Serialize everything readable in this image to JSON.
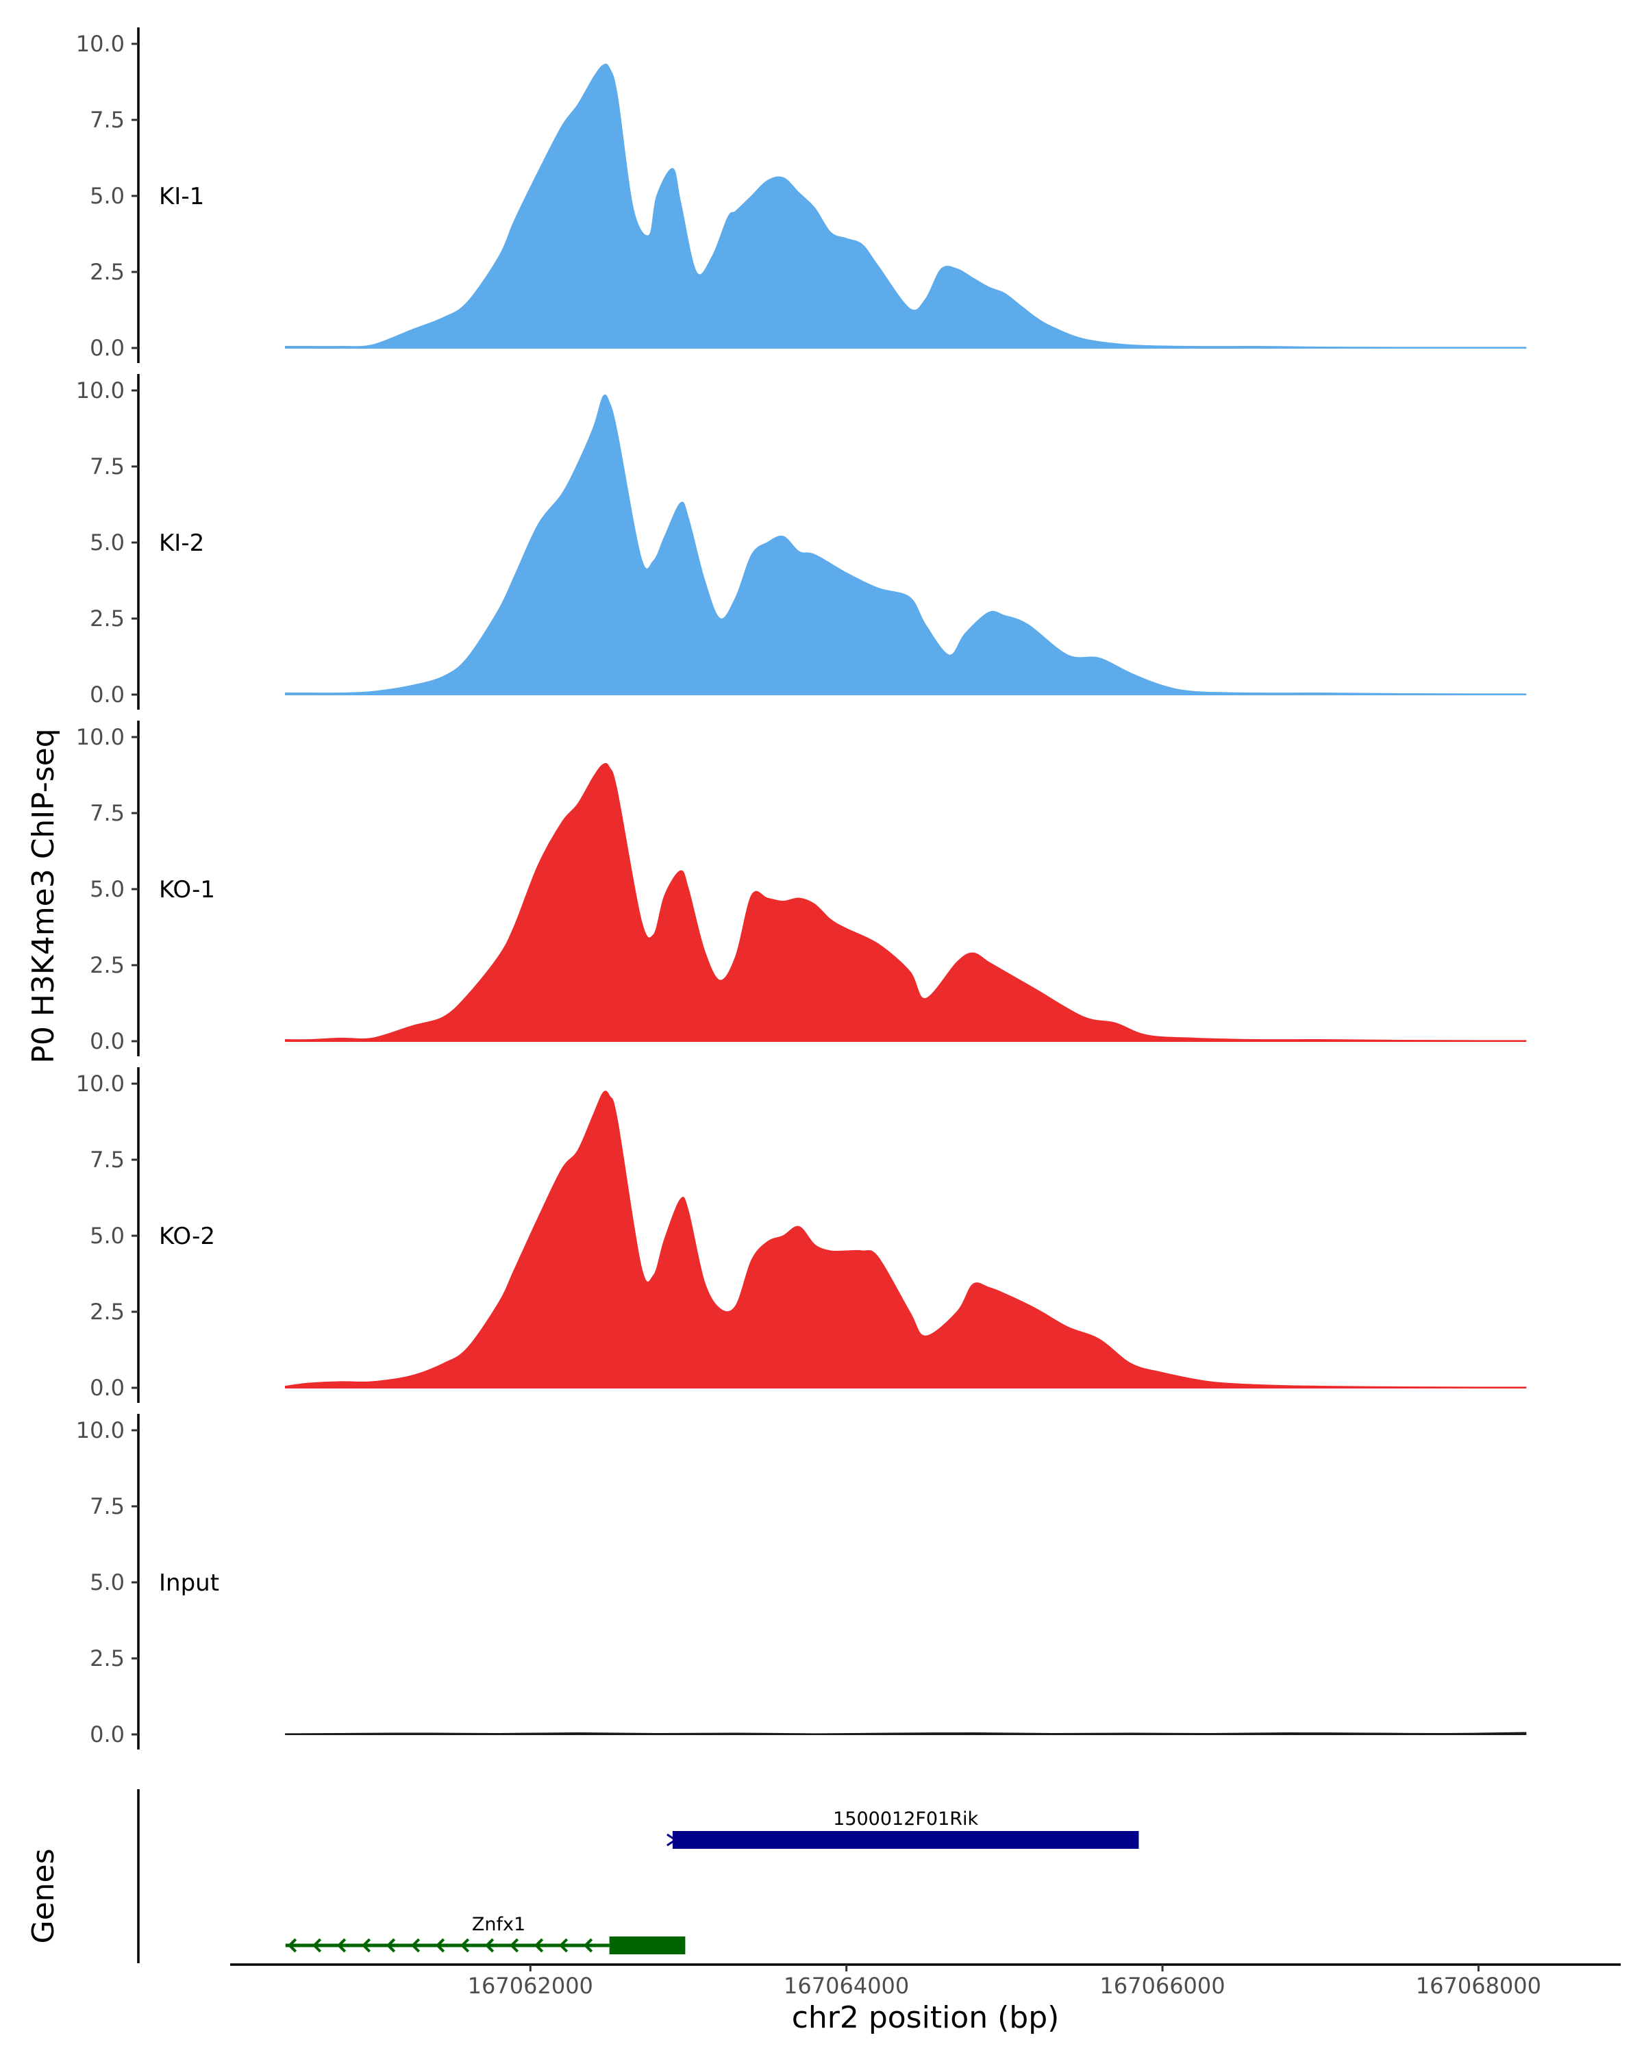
{
  "chart_data": {
    "type": "area",
    "chromosome": "chr2",
    "ylabel": "P0 H3K4me3 ChIP-seq",
    "xlabel": "chr2 position (bp)",
    "xlim": [
      167060100,
      167068900
    ],
    "ylim": [
      0,
      10
    ],
    "y_ticks": [
      "0.0",
      "2.5",
      "5.0",
      "7.5",
      "10.0"
    ],
    "x_ticks": [
      {
        "value": 167062000,
        "label": "167062000"
      },
      {
        "value": 167064000,
        "label": "167064000"
      },
      {
        "value": 167066000,
        "label": "167066000"
      },
      {
        "value": 167068000,
        "label": "167068000"
      }
    ],
    "genes_label": "Genes",
    "tracks": [
      {
        "name": "KI-1",
        "color": "#5dabeb",
        "x": [
          167060450,
          167060600,
          167060800,
          167061000,
          167061250,
          167061450,
          167061600,
          167061800,
          167061900,
          167062050,
          167062200,
          167062300,
          167062400,
          167062460,
          167062500,
          167062550,
          167062650,
          167062750,
          167062800,
          167062900,
          167062950,
          167063050,
          167063150,
          167063250,
          167063300,
          167063400,
          167063500,
          167063600,
          167063700,
          167063800,
          167063900,
          167064000,
          167064100,
          167064200,
          167064400,
          167064500,
          167064600,
          167064700,
          167064800,
          167064900,
          167065000,
          167065100,
          167065200,
          167065300,
          167065500,
          167065800,
          167066200,
          167066600,
          167067000,
          167067500,
          167068000,
          167068300
        ],
        "values": [
          0.05,
          0.05,
          0.05,
          0.1,
          0.6,
          1.0,
          1.5,
          3.0,
          4.2,
          5.8,
          7.3,
          8.0,
          8.9,
          9.3,
          9.2,
          8.3,
          4.6,
          3.7,
          5.0,
          5.9,
          4.8,
          2.5,
          3.0,
          4.3,
          4.5,
          5.0,
          5.5,
          5.6,
          5.1,
          4.6,
          3.8,
          3.6,
          3.4,
          2.7,
          1.3,
          1.6,
          2.6,
          2.6,
          2.3,
          2.0,
          1.8,
          1.4,
          1.0,
          0.7,
          0.3,
          0.1,
          0.05,
          0.05,
          0.03,
          0.02,
          0.02,
          0.02
        ]
      },
      {
        "name": "KI-2",
        "color": "#5dabeb",
        "x": [
          167060450,
          167060600,
          167060800,
          167061000,
          167061250,
          167061450,
          167061600,
          167061800,
          167061900,
          167062050,
          167062200,
          167062300,
          167062400,
          167062460,
          167062500,
          167062550,
          167062700,
          167062780,
          167062850,
          167062950,
          167063000,
          167063100,
          167063200,
          167063300,
          167063400,
          167063500,
          167063600,
          167063700,
          167063800,
          167064000,
          167064200,
          167064400,
          167064500,
          167064650,
          167064750,
          167064900,
          167065000,
          167065150,
          167065400,
          167065600,
          167065800,
          167066000,
          167066200,
          167066600,
          167067000,
          167067500,
          167068000,
          167068300
        ],
        "values": [
          0.05,
          0.05,
          0.05,
          0.1,
          0.3,
          0.6,
          1.2,
          2.8,
          3.9,
          5.6,
          6.6,
          7.6,
          8.8,
          9.8,
          9.6,
          8.6,
          4.5,
          4.4,
          5.2,
          6.3,
          5.8,
          3.8,
          2.5,
          3.2,
          4.6,
          5.0,
          5.2,
          4.7,
          4.6,
          4.0,
          3.5,
          3.2,
          2.3,
          1.3,
          2.0,
          2.7,
          2.6,
          2.3,
          1.3,
          1.2,
          0.7,
          0.3,
          0.1,
          0.05,
          0.05,
          0.03,
          0.02,
          0.02
        ]
      },
      {
        "name": "KO-1",
        "color": "#ec2c2c",
        "x": [
          167060450,
          167060600,
          167060800,
          167061000,
          167061250,
          167061450,
          167061600,
          167061800,
          167061900,
          167062050,
          167062200,
          167062300,
          167062400,
          167062460,
          167062500,
          167062550,
          167062700,
          167062780,
          167062850,
          167062950,
          167063000,
          167063100,
          167063200,
          167063300,
          167063400,
          167063500,
          167063600,
          167063700,
          167063800,
          167063900,
          167064000,
          167064200,
          167064400,
          167064500,
          167064700,
          167064800,
          167064900,
          167065000,
          167065200,
          167065500,
          167065700,
          167065900,
          167066200,
          167066600,
          167067000,
          167067500,
          167068000,
          167068300
        ],
        "values": [
          0.05,
          0.05,
          0.1,
          0.1,
          0.5,
          0.8,
          1.5,
          2.8,
          3.8,
          5.8,
          7.2,
          7.8,
          8.7,
          9.1,
          9.0,
          8.2,
          4.0,
          3.5,
          4.8,
          5.6,
          5.0,
          3.0,
          2.0,
          2.8,
          4.8,
          4.7,
          4.6,
          4.7,
          4.5,
          4.0,
          3.7,
          3.2,
          2.3,
          1.4,
          2.6,
          2.9,
          2.6,
          2.3,
          1.7,
          0.8,
          0.6,
          0.2,
          0.1,
          0.05,
          0.05,
          0.03,
          0.02,
          0.02
        ]
      },
      {
        "name": "KO-2",
        "color": "#ec2c2c",
        "x": [
          167060450,
          167060600,
          167060800,
          167061000,
          167061250,
          167061450,
          167061600,
          167061800,
          167061900,
          167062050,
          167062200,
          167062300,
          167062400,
          167062460,
          167062500,
          167062550,
          167062700,
          167062780,
          167062850,
          167062950,
          167063000,
          167063100,
          167063200,
          167063300,
          167063400,
          167063500,
          167063600,
          167063700,
          167063800,
          167063900,
          167064000,
          167064100,
          167064200,
          167064400,
          167064500,
          167064700,
          167064800,
          167064900,
          167065000,
          167065200,
          167065400,
          167065600,
          167065800,
          167066000,
          167066300,
          167066600,
          167067000,
          167067500,
          167068000,
          167068300
        ],
        "values": [
          0.05,
          0.15,
          0.2,
          0.2,
          0.4,
          0.8,
          1.3,
          2.8,
          3.9,
          5.6,
          7.2,
          7.8,
          9.0,
          9.7,
          9.6,
          8.8,
          4.0,
          3.7,
          4.9,
          6.2,
          5.8,
          3.5,
          2.6,
          2.7,
          4.2,
          4.8,
          5.0,
          5.3,
          4.7,
          4.5,
          4.5,
          4.5,
          4.3,
          2.5,
          1.7,
          2.5,
          3.4,
          3.3,
          3.1,
          2.6,
          2.0,
          1.6,
          0.8,
          0.5,
          0.2,
          0.1,
          0.05,
          0.03,
          0.02,
          0.02
        ]
      },
      {
        "name": "Input",
        "color": "#1a1a1a",
        "x": [
          167060450,
          167060800,
          167061300,
          167061800,
          167062300,
          167062800,
          167063300,
          167063800,
          167064300,
          167064800,
          167065300,
          167065800,
          167066300,
          167066800,
          167067300,
          167067800,
          167068300
        ],
        "values": [
          0.02,
          0.03,
          0.04,
          0.03,
          0.05,
          0.03,
          0.04,
          0.02,
          0.04,
          0.05,
          0.03,
          0.04,
          0.03,
          0.05,
          0.04,
          0.03,
          0.06
        ]
      }
    ],
    "genes": [
      {
        "name": "1500012F01Rik",
        "strand": "+",
        "start": 167062900,
        "end": 167065850,
        "color": "#00008b",
        "row": 1
      },
      {
        "name": "Znfx1",
        "strand": "-",
        "start": 167060450,
        "end": 167062980,
        "cds_start": 167062500,
        "cds_end": 167062980,
        "color": "#006400",
        "row": 2
      }
    ]
  }
}
